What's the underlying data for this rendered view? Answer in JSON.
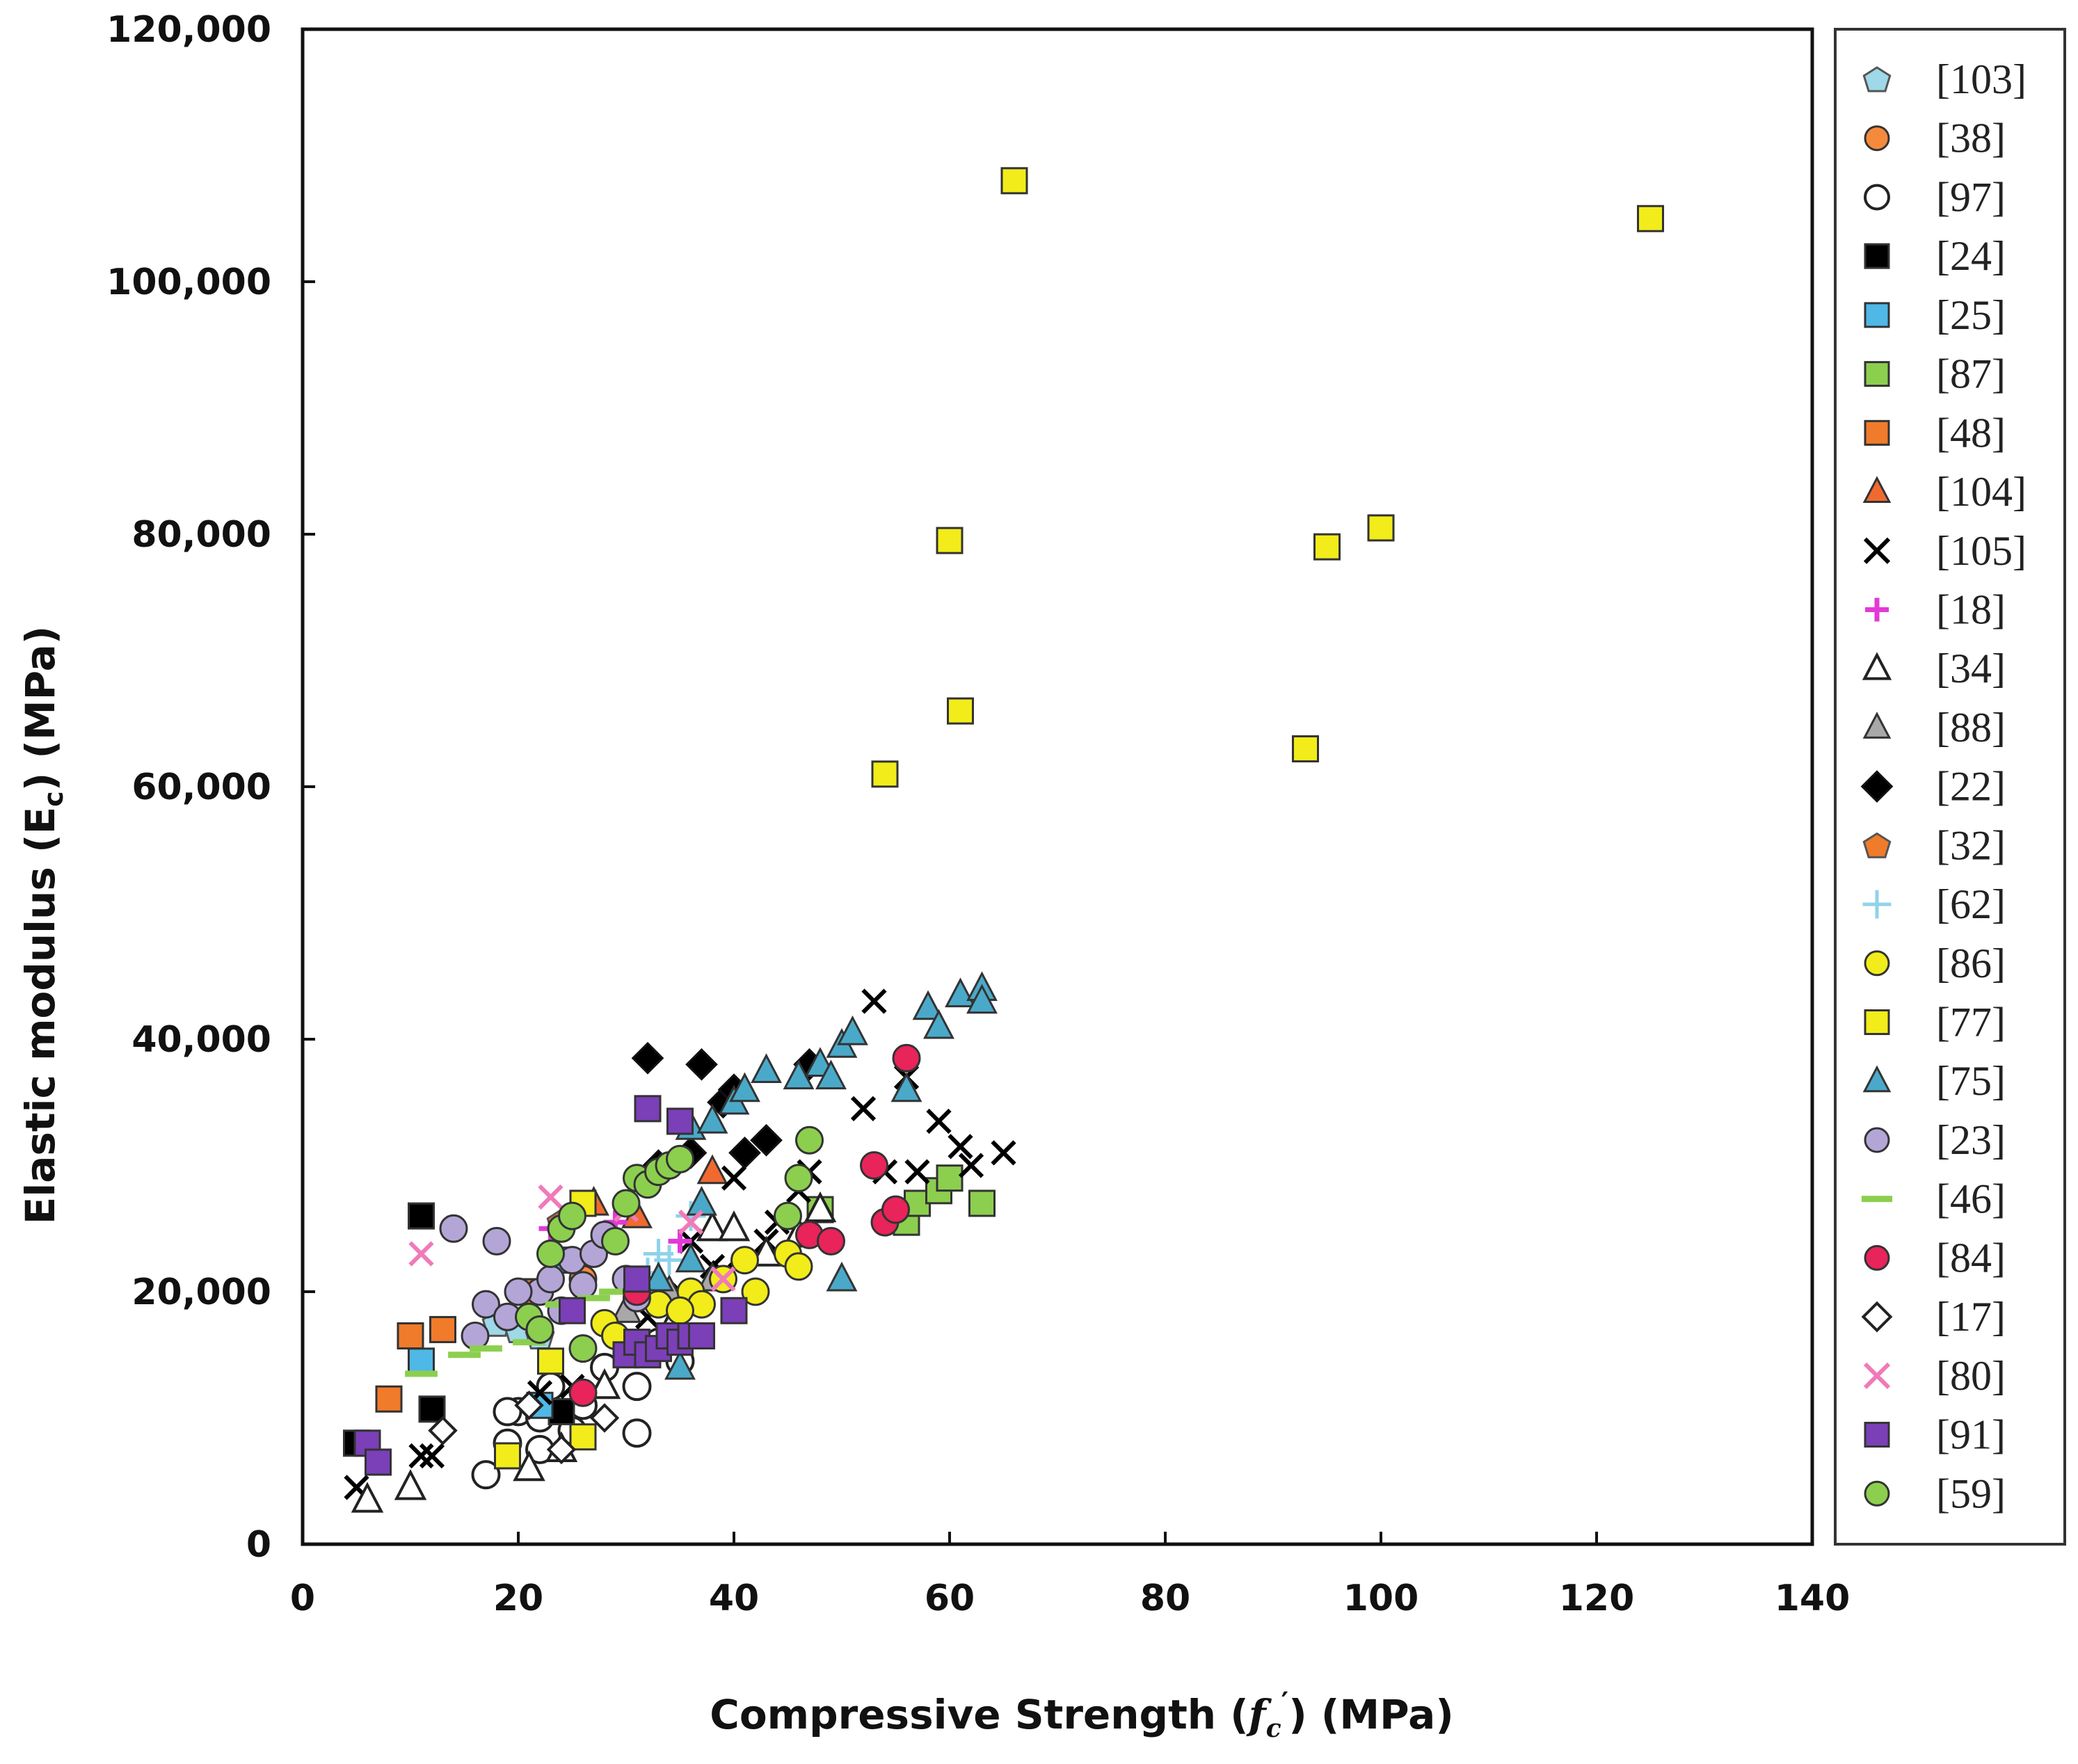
{
  "chart_data": {
    "type": "scatter",
    "title": "",
    "xlabel_parts": [
      "Compressive Strength (",
      "f",
      "c",
      "′",
      ") (MPa)"
    ],
    "ylabel_parts": [
      "Elastic modulus (E",
      "c",
      ") (MPa)"
    ],
    "xlim": [
      0,
      140
    ],
    "ylim": [
      0,
      120000
    ],
    "x_ticks": [
      0,
      20,
      40,
      60,
      80,
      100,
      120,
      140
    ],
    "y_ticks": [
      0,
      20000,
      40000,
      60000,
      80000,
      100000,
      120000
    ],
    "x_tick_labels": [
      "0",
      "20",
      "40",
      "60",
      "80",
      "100",
      "120",
      "140"
    ],
    "y_tick_labels": [
      "0",
      "20,000",
      "40,000",
      "60,000",
      "80,000",
      "100,000",
      "120,000"
    ],
    "grid": false,
    "legend_position": "right",
    "series": [
      {
        "name": "[103]",
        "marker": "diamond-circle",
        "color": "#9fd8e8",
        "points": [
          [
            18,
            17500
          ],
          [
            20,
            17000
          ],
          [
            22,
            16500
          ]
        ]
      },
      {
        "name": "[38]",
        "marker": "circle",
        "color": "#f58a3c",
        "points": [
          [
            26,
            21000
          ]
        ]
      },
      {
        "name": "[97]",
        "marker": "open-circle",
        "color": "#ffffff",
        "points": [
          [
            17,
            5500
          ],
          [
            19,
            8000
          ],
          [
            20,
            10500
          ],
          [
            22,
            7500
          ],
          [
            23,
            12500
          ],
          [
            25,
            9000
          ],
          [
            28,
            14000
          ],
          [
            31,
            12500
          ],
          [
            31,
            8800
          ],
          [
            33,
            16000
          ],
          [
            35,
            14500
          ],
          [
            22,
            10000
          ],
          [
            26,
            11000
          ],
          [
            19,
            10500
          ]
        ]
      },
      {
        "name": "[24]",
        "marker": "square",
        "color": "#000000",
        "points": [
          [
            11,
            26000
          ],
          [
            12,
            10700
          ],
          [
            24,
            10500
          ],
          [
            5,
            8000
          ],
          [
            7,
            6500
          ]
        ]
      },
      {
        "name": "[25]",
        "marker": "square",
        "color": "#4fb8e6",
        "points": [
          [
            10,
            16500
          ],
          [
            11,
            14500
          ],
          [
            24,
            22500
          ],
          [
            22,
            11000
          ]
        ]
      },
      {
        "name": "[87]",
        "marker": "square",
        "color": "#8ccf4f",
        "points": [
          [
            56,
            25500
          ],
          [
            57,
            27000
          ],
          [
            59,
            28000
          ],
          [
            60,
            29000
          ],
          [
            63,
            27000
          ],
          [
            48,
            26500
          ]
        ]
      },
      {
        "name": "[48]",
        "marker": "square",
        "color": "#f07b2a",
        "points": [
          [
            8,
            11500
          ],
          [
            10,
            16500
          ],
          [
            13,
            17000
          ],
          [
            21,
            20000
          ]
        ]
      },
      {
        "name": "[104]",
        "marker": "triangle",
        "color": "#f06a30",
        "points": [
          [
            27,
            27000
          ],
          [
            38,
            29500
          ],
          [
            31,
            26000
          ]
        ]
      },
      {
        "name": "[105]",
        "marker": "x",
        "color": "#000000",
        "points": [
          [
            5,
            4500
          ],
          [
            11,
            7000
          ],
          [
            12,
            7000
          ],
          [
            22,
            12000
          ],
          [
            25,
            12500
          ],
          [
            32,
            18000
          ],
          [
            35,
            20000
          ],
          [
            38,
            22000
          ],
          [
            40,
            29000
          ],
          [
            43,
            24000
          ],
          [
            44,
            25500
          ],
          [
            46,
            28000
          ],
          [
            47,
            29500
          ],
          [
            52,
            34500
          ],
          [
            53,
            43000
          ],
          [
            54,
            29500
          ],
          [
            56,
            37000
          ],
          [
            57,
            29500
          ],
          [
            59,
            33500
          ],
          [
            61,
            31500
          ],
          [
            62,
            30000
          ],
          [
            65,
            31000
          ],
          [
            36,
            24000
          ],
          [
            39,
            21500
          ]
        ]
      },
      {
        "name": "[18]",
        "marker": "plus",
        "color": "#e23ad6",
        "points": [
          [
            23,
            25000
          ],
          [
            29,
            25500
          ],
          [
            35,
            24000
          ]
        ]
      },
      {
        "name": "[34]",
        "marker": "open-triangle",
        "color": "#ffffff",
        "points": [
          [
            6,
            3500
          ],
          [
            10,
            4500
          ],
          [
            21,
            6000
          ],
          [
            24,
            7500
          ],
          [
            28,
            12500
          ],
          [
            31,
            15500
          ],
          [
            34,
            17000
          ],
          [
            38,
            25000
          ],
          [
            40,
            25000
          ],
          [
            43,
            23000
          ],
          [
            46,
            24500
          ],
          [
            48,
            26500
          ]
        ]
      },
      {
        "name": "[88]",
        "marker": "triangle",
        "color": "#a8a8a8",
        "points": [
          [
            30,
            18500
          ],
          [
            34,
            20000
          ],
          [
            38,
            21000
          ]
        ]
      },
      {
        "name": "[22]",
        "marker": "diamond",
        "color": "#000000",
        "points": [
          [
            32,
            38500
          ],
          [
            37,
            38000
          ],
          [
            39,
            35000
          ],
          [
            40,
            36000
          ],
          [
            41,
            31000
          ],
          [
            43,
            32000
          ],
          [
            47,
            38000
          ],
          [
            33,
            30000
          ],
          [
            36,
            31000
          ]
        ]
      },
      {
        "name": "[32]",
        "marker": "diamond-circle",
        "color": "#f07b2a",
        "points": [
          [
            24,
            25500
          ]
        ]
      },
      {
        "name": "[62]",
        "marker": "thin-plus",
        "color": "#8fd3ea",
        "points": [
          [
            32,
            21500
          ],
          [
            34,
            22500
          ],
          [
            36,
            26000
          ],
          [
            33,
            23000
          ]
        ]
      },
      {
        "name": "[86]",
        "marker": "circle",
        "color": "#f2ec1a",
        "points": [
          [
            28,
            17500
          ],
          [
            31,
            19500
          ],
          [
            33,
            19000
          ],
          [
            36,
            20000
          ],
          [
            37,
            19000
          ],
          [
            39,
            21000
          ],
          [
            41,
            22500
          ],
          [
            42,
            20000
          ],
          [
            45,
            23000
          ],
          [
            46,
            22000
          ],
          [
            29,
            16500
          ],
          [
            35,
            18500
          ]
        ]
      },
      {
        "name": "[77]",
        "marker": "square",
        "color": "#f2ec1a",
        "points": [
          [
            19,
            7000
          ],
          [
            23,
            14500
          ],
          [
            26,
            8500
          ],
          [
            26,
            27000
          ],
          [
            54,
            61000
          ],
          [
            60,
            79500
          ],
          [
            61,
            66000
          ],
          [
            66,
            108000
          ],
          [
            93,
            63000
          ],
          [
            95,
            79000
          ],
          [
            100,
            80500
          ],
          [
            125,
            105000
          ]
        ]
      },
      {
        "name": "[75]",
        "marker": "triangle",
        "color": "#4aa9c9",
        "points": [
          [
            36,
            33000
          ],
          [
            38,
            33500
          ],
          [
            40,
            35000
          ],
          [
            41,
            36000
          ],
          [
            43,
            37500
          ],
          [
            46,
            37000
          ],
          [
            48,
            38000
          ],
          [
            49,
            37000
          ],
          [
            50,
            39500
          ],
          [
            51,
            40500
          ],
          [
            56,
            36000
          ],
          [
            58,
            42500
          ],
          [
            59,
            41000
          ],
          [
            61,
            43500
          ],
          [
            63,
            44000
          ],
          [
            63,
            43000
          ],
          [
            50,
            21000
          ],
          [
            35,
            14000
          ],
          [
            33,
            21000
          ],
          [
            36,
            22500
          ],
          [
            37,
            27000
          ]
        ]
      },
      {
        "name": "[23]",
        "marker": "circle",
        "color": "#b3a6d6",
        "points": [
          [
            14,
            25000
          ],
          [
            18,
            24000
          ],
          [
            17,
            19000
          ],
          [
            19,
            18000
          ],
          [
            22,
            20000
          ],
          [
            23,
            21000
          ],
          [
            25,
            22500
          ],
          [
            26,
            20500
          ],
          [
            27,
            23000
          ],
          [
            28,
            24500
          ],
          [
            30,
            21000
          ],
          [
            31,
            19500
          ],
          [
            16,
            16500
          ],
          [
            24,
            18500
          ],
          [
            20,
            20000
          ]
        ]
      },
      {
        "name": "[46]",
        "marker": "dash",
        "color": "#8ccf4f",
        "points": [
          [
            11,
            13500
          ],
          [
            15,
            15000
          ],
          [
            17,
            15500
          ],
          [
            24,
            19000
          ],
          [
            27,
            19500
          ],
          [
            29,
            20000
          ],
          [
            21,
            16000
          ]
        ]
      },
      {
        "name": "[84]",
        "marker": "circle",
        "color": "#e8245a",
        "points": [
          [
            26,
            12000
          ],
          [
            47,
            24500
          ],
          [
            49,
            24000
          ],
          [
            53,
            30000
          ],
          [
            54,
            25500
          ],
          [
            55,
            26500
          ],
          [
            56,
            38500
          ],
          [
            31,
            20000
          ]
        ]
      },
      {
        "name": "[17]",
        "marker": "open-diamond",
        "color": "#ffffff",
        "points": [
          [
            13,
            9000
          ],
          [
            21,
            11000
          ],
          [
            24,
            7500
          ],
          [
            28,
            10000
          ]
        ]
      },
      {
        "name": "[80]",
        "marker": "x",
        "color": "#f07ab8",
        "points": [
          [
            11,
            23000
          ],
          [
            23,
            27500
          ],
          [
            30,
            26500
          ],
          [
            36,
            25500
          ],
          [
            39,
            21000
          ]
        ]
      },
      {
        "name": "[91]",
        "marker": "square",
        "color": "#7b3fb8",
        "points": [
          [
            25,
            18500
          ],
          [
            30,
            15000
          ],
          [
            31,
            16000
          ],
          [
            32,
            15000
          ],
          [
            33,
            15500
          ],
          [
            34,
            16500
          ],
          [
            35,
            16000
          ],
          [
            36,
            16500
          ],
          [
            37,
            16500
          ],
          [
            40,
            18500
          ],
          [
            31,
            21000
          ],
          [
            32,
            34500
          ],
          [
            35,
            33500
          ],
          [
            6,
            8000
          ],
          [
            7,
            6500
          ]
        ]
      },
      {
        "name": "[59]",
        "marker": "circle",
        "color": "#8ccf4f",
        "points": [
          [
            21,
            18000
          ],
          [
            23,
            23000
          ],
          [
            24,
            25000
          ],
          [
            25,
            26000
          ],
          [
            26,
            15500
          ],
          [
            29,
            24000
          ],
          [
            30,
            27000
          ],
          [
            31,
            29000
          ],
          [
            32,
            28500
          ],
          [
            33,
            29500
          ],
          [
            34,
            30000
          ],
          [
            35,
            30500
          ],
          [
            45,
            26000
          ],
          [
            46,
            29000
          ],
          [
            47,
            32000
          ],
          [
            22,
            17000
          ]
        ]
      }
    ]
  }
}
